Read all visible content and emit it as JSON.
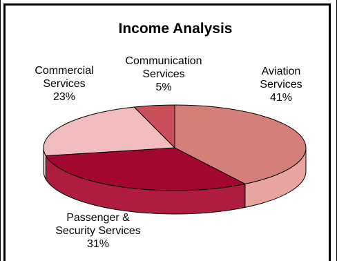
{
  "chart_data": {
    "type": "pie",
    "title": "Income Analysis",
    "slices": [
      {
        "label_lines": [
          "Aviation",
          "Services"
        ],
        "value": 41,
        "value_label": "41%",
        "color": "#d57f7b",
        "side_color": "#e8a49f"
      },
      {
        "label_lines": [
          "Passenger &",
          "Security Services"
        ],
        "value": 31,
        "value_label": "31%",
        "color": "#a3062f",
        "side_color": "#ae1d3e"
      },
      {
        "label_lines": [
          "Commercial",
          "Services"
        ],
        "value": 23,
        "value_label": "23%",
        "color": "#f1bcbd",
        "side_color": "#f4c9c9"
      },
      {
        "label_lines": [
          "Communication",
          "Services"
        ],
        "value": 5,
        "value_label": "5%",
        "color": "#c9505a",
        "side_color": "#c9505a"
      }
    ],
    "start_angle_deg": 0,
    "direction": "clockwise",
    "legend": "none"
  }
}
